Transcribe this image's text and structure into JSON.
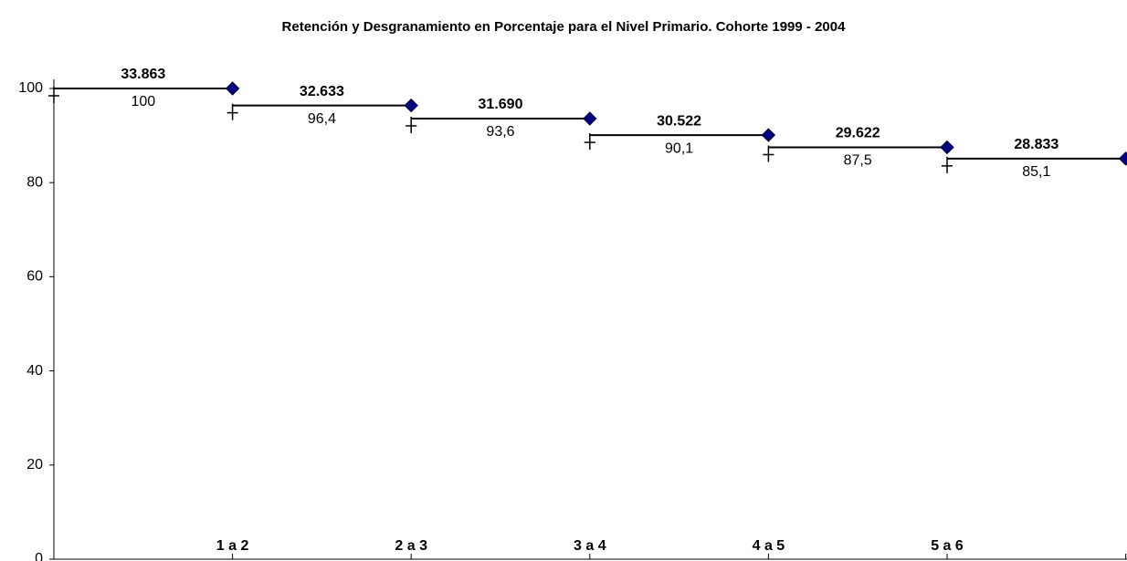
{
  "chart_data": {
    "type": "step",
    "title": "Retención y Desgranamiento en Porcentaje para el Nivel Primario. Cohorte 1999 - 2004",
    "categories": [
      "1 a 2",
      "2 a 3",
      "3 a 4",
      "4 a 5",
      "5 a 6",
      null
    ],
    "series": [
      {
        "color": "#000080",
        "values": [
          100,
          96.4,
          93.6,
          90.1,
          87.5,
          85.1
        ],
        "value_labels": [
          "100",
          "96,4",
          "93,6",
          "90,1",
          "87,5",
          "85,1"
        ]
      }
    ],
    "counts": [
      33863,
      32633,
      31690,
      30522,
      29622,
      28833
    ],
    "count_labels": [
      "33.863",
      "32.633",
      "31.690",
      "30.522",
      "29.622",
      "28.833"
    ],
    "ylim": [
      0,
      100
    ],
    "yticks": [
      0,
      20,
      40,
      60,
      80,
      100
    ],
    "grid": false
  }
}
